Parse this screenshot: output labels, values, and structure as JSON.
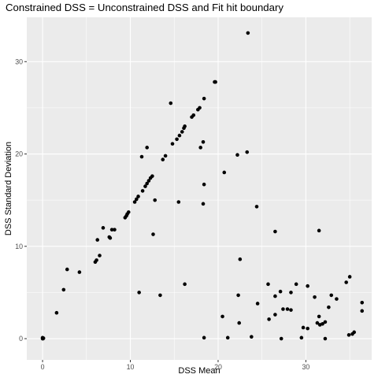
{
  "chart_data": {
    "type": "scatter",
    "title": "Constrained DSS = Unconstrained DSS and Fit hit boundary",
    "xlabel": "DSS Mean",
    "ylabel": "DSS Standard Deviation",
    "xlim": [
      -1.8,
      37.5
    ],
    "ylim": [
      -2.3,
      34.8
    ],
    "x_ticks": [
      0,
      10,
      20,
      30
    ],
    "y_ticks": [
      0,
      10,
      20,
      30
    ],
    "grid": true,
    "panel_background": "#ebebeb",
    "grid_color": "#ffffff",
    "point_color": "#000000",
    "points": [
      [
        0.0,
        0.0
      ],
      [
        0.05,
        0.0
      ],
      [
        0.1,
        0.05
      ],
      [
        0.0,
        0.1
      ],
      [
        1.6,
        2.8
      ],
      [
        2.4,
        5.3
      ],
      [
        2.8,
        7.5
      ],
      [
        4.2,
        7.2
      ],
      [
        6.0,
        8.3
      ],
      [
        6.15,
        8.5
      ],
      [
        6.25,
        10.7
      ],
      [
        6.5,
        9.0
      ],
      [
        6.9,
        12.0
      ],
      [
        7.6,
        11.0
      ],
      [
        7.7,
        10.9
      ],
      [
        7.9,
        11.8
      ],
      [
        8.2,
        11.8
      ],
      [
        9.4,
        13.1
      ],
      [
        9.55,
        13.3
      ],
      [
        9.65,
        13.5
      ],
      [
        9.8,
        13.7
      ],
      [
        10.5,
        14.8
      ],
      [
        10.7,
        15.1
      ],
      [
        10.9,
        15.4
      ],
      [
        11.4,
        16.0
      ],
      [
        11.7,
        16.5
      ],
      [
        11.9,
        16.8
      ],
      [
        12.1,
        17.1
      ],
      [
        12.3,
        17.4
      ],
      [
        12.5,
        17.6
      ],
      [
        11.3,
        19.7
      ],
      [
        11.9,
        20.7
      ],
      [
        12.8,
        15.0
      ],
      [
        12.6,
        11.3
      ],
      [
        11.0,
        5.0
      ],
      [
        13.4,
        4.7
      ],
      [
        13.7,
        19.4
      ],
      [
        14.0,
        19.8
      ],
      [
        14.6,
        25.5
      ],
      [
        14.8,
        21.1
      ],
      [
        15.3,
        21.6
      ],
      [
        15.6,
        22.0
      ],
      [
        15.9,
        22.4
      ],
      [
        16.1,
        22.8
      ],
      [
        16.2,
        23.0
      ],
      [
        15.5,
        14.8
      ],
      [
        16.2,
        5.9
      ],
      [
        17.0,
        24.0
      ],
      [
        17.2,
        24.2
      ],
      [
        17.7,
        24.8
      ],
      [
        17.9,
        25.0
      ],
      [
        18.0,
        20.7
      ],
      [
        18.3,
        21.3
      ],
      [
        18.4,
        26.0
      ],
      [
        18.4,
        16.7
      ],
      [
        18.3,
        14.6
      ],
      [
        18.4,
        0.1
      ],
      [
        19.6,
        27.8
      ],
      [
        19.7,
        27.8
      ],
      [
        20.7,
        18.0
      ],
      [
        20.5,
        2.4
      ],
      [
        21.1,
        0.1
      ],
      [
        22.2,
        19.9
      ],
      [
        22.5,
        8.6
      ],
      [
        22.3,
        4.7
      ],
      [
        22.4,
        1.7
      ],
      [
        23.3,
        20.2
      ],
      [
        23.4,
        33.1
      ],
      [
        23.8,
        0.2
      ],
      [
        24.4,
        14.3
      ],
      [
        24.5,
        3.8
      ],
      [
        25.7,
        5.9
      ],
      [
        25.8,
        2.1
      ],
      [
        26.5,
        11.6
      ],
      [
        26.5,
        2.6
      ],
      [
        26.5,
        4.6
      ],
      [
        27.2,
        0.0
      ],
      [
        27.1,
        5.1
      ],
      [
        27.4,
        3.2
      ],
      [
        27.9,
        3.2
      ],
      [
        28.3,
        3.1
      ],
      [
        28.3,
        5.0
      ],
      [
        28.9,
        5.9
      ],
      [
        29.5,
        0.1
      ],
      [
        29.7,
        1.2
      ],
      [
        30.2,
        1.1
      ],
      [
        30.2,
        5.7
      ],
      [
        31.0,
        4.5
      ],
      [
        31.5,
        11.7
      ],
      [
        31.3,
        1.7
      ],
      [
        31.5,
        2.4
      ],
      [
        31.6,
        1.5
      ],
      [
        31.9,
        1.6
      ],
      [
        32.2,
        1.8
      ],
      [
        32.2,
        0.0
      ],
      [
        32.6,
        3.4
      ],
      [
        32.9,
        4.7
      ],
      [
        33.5,
        4.3
      ],
      [
        34.6,
        6.1
      ],
      [
        34.9,
        0.4
      ],
      [
        35.0,
        6.7
      ],
      [
        35.3,
        0.5
      ],
      [
        35.5,
        0.7
      ],
      [
        36.4,
        3.0
      ],
      [
        36.4,
        3.9
      ]
    ]
  }
}
